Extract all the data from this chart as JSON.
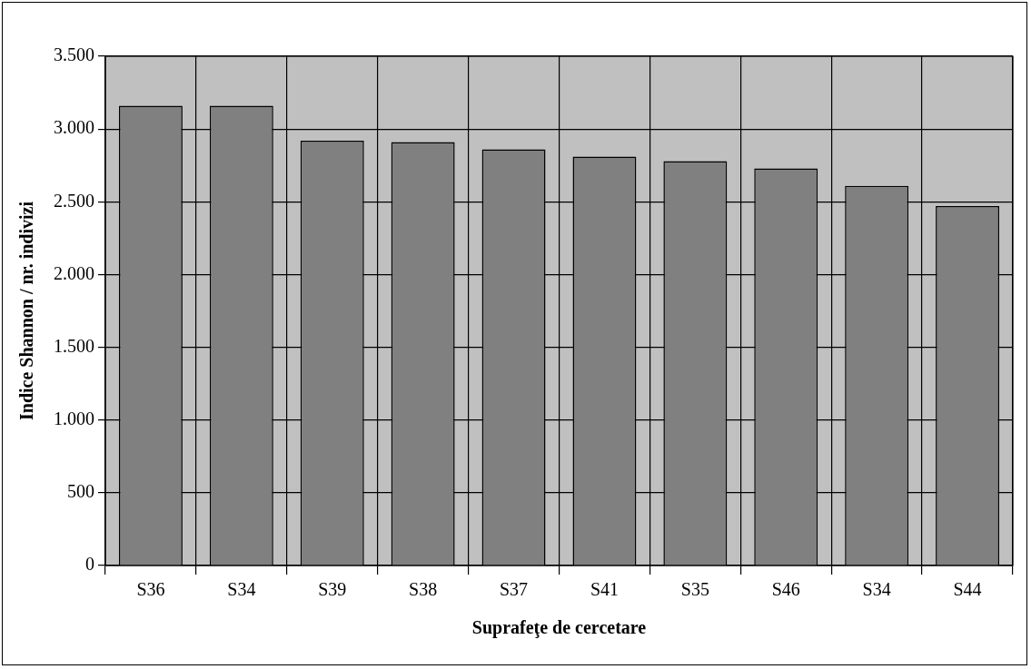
{
  "chart_data": {
    "type": "bar",
    "xlabel": "Suprafeţe de cercetare",
    "ylabel": "Indice Shannon / nr. indivizi",
    "categories": [
      "S36",
      "S34",
      "S39",
      "S38",
      "S37",
      "S41",
      "S35",
      "S46",
      "S34",
      "S44"
    ],
    "values": [
      3160,
      3160,
      2920,
      2910,
      2860,
      2810,
      2780,
      2730,
      2610,
      2470
    ],
    "color": "#808080",
    "ylim": [
      0,
      3500
    ],
    "yticks": [
      {
        "value": 0,
        "label": "0"
      },
      {
        "value": 500,
        "label": "500"
      },
      {
        "value": 1000,
        "label": "1.000"
      },
      {
        "value": 1500,
        "label": "1.500"
      },
      {
        "value": 2000,
        "label": "2.000"
      },
      {
        "value": 2500,
        "label": "2.500"
      },
      {
        "value": 3000,
        "label": "3.000"
      },
      {
        "value": 3500,
        "label": "3.500"
      }
    ],
    "grid": true
  }
}
